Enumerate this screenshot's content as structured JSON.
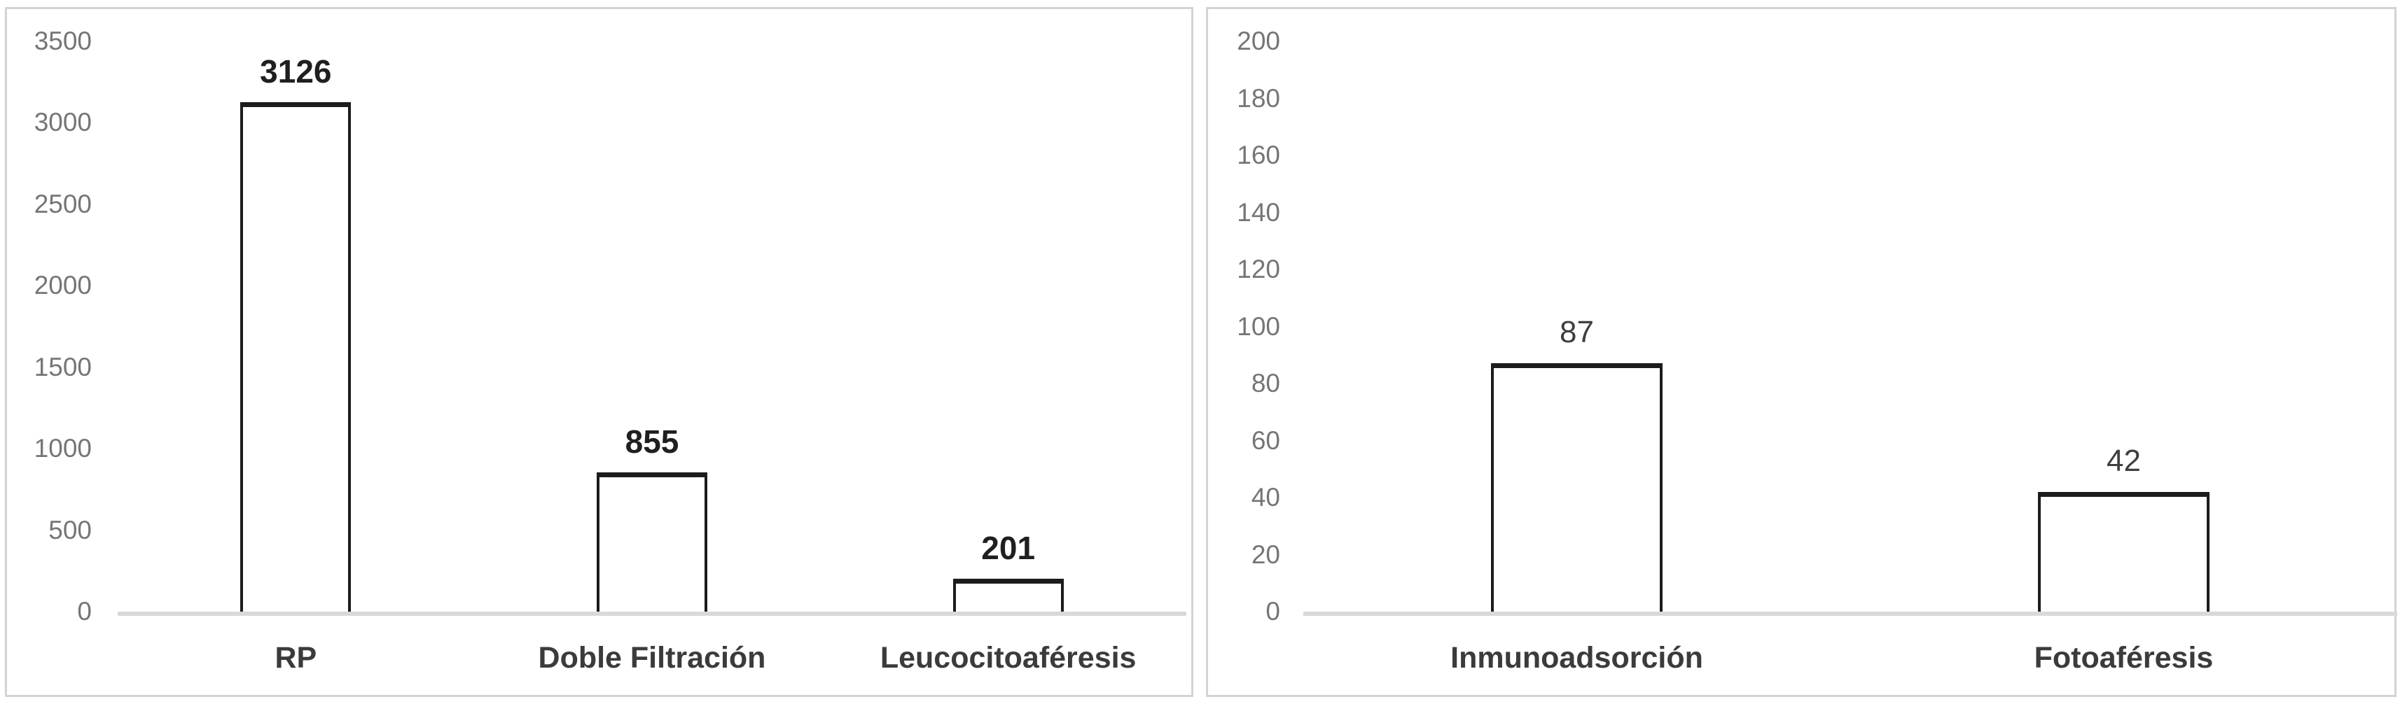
{
  "figure": {
    "background_color": "#ffffff",
    "panel_border_color": "#d3d3d3",
    "axis_line_color": "#d9d9d9",
    "tick_label_color": "#757575",
    "category_label_color": "#3b3b3b",
    "bar_fill_color": "#ffffff",
    "bar_border_color": "#1c1c1c"
  },
  "chart_data": [
    {
      "type": "bar",
      "title": "",
      "xlabel": "",
      "ylabel": "",
      "categories": [
        "RP",
        "Doble Filtración",
        "Leucocitoaféresis"
      ],
      "values": [
        3126,
        855,
        201
      ],
      "value_labels": [
        "3126",
        "855",
        "201"
      ],
      "yticks": [
        "3500",
        "3000",
        "2500",
        "2000",
        "1500",
        "1000",
        "500",
        "0"
      ],
      "ylim": [
        0,
        3500
      ],
      "ytick_step": 500,
      "grid": false,
      "legend": false,
      "value_color": "#1f1f1f"
    },
    {
      "type": "bar",
      "title": "",
      "xlabel": "",
      "ylabel": "",
      "categories": [
        "Inmunoadsorción",
        "Fotoaféresis"
      ],
      "values": [
        87,
        42
      ],
      "value_labels": [
        "87",
        "42"
      ],
      "yticks": [
        "200",
        "180",
        "160",
        "140",
        "120",
        "100",
        "80",
        "60",
        "40",
        "20",
        "0"
      ],
      "ylim": [
        0,
        200
      ],
      "ytick_step": 20,
      "grid": false,
      "legend": false,
      "value_color": "#3f3f3f"
    }
  ]
}
